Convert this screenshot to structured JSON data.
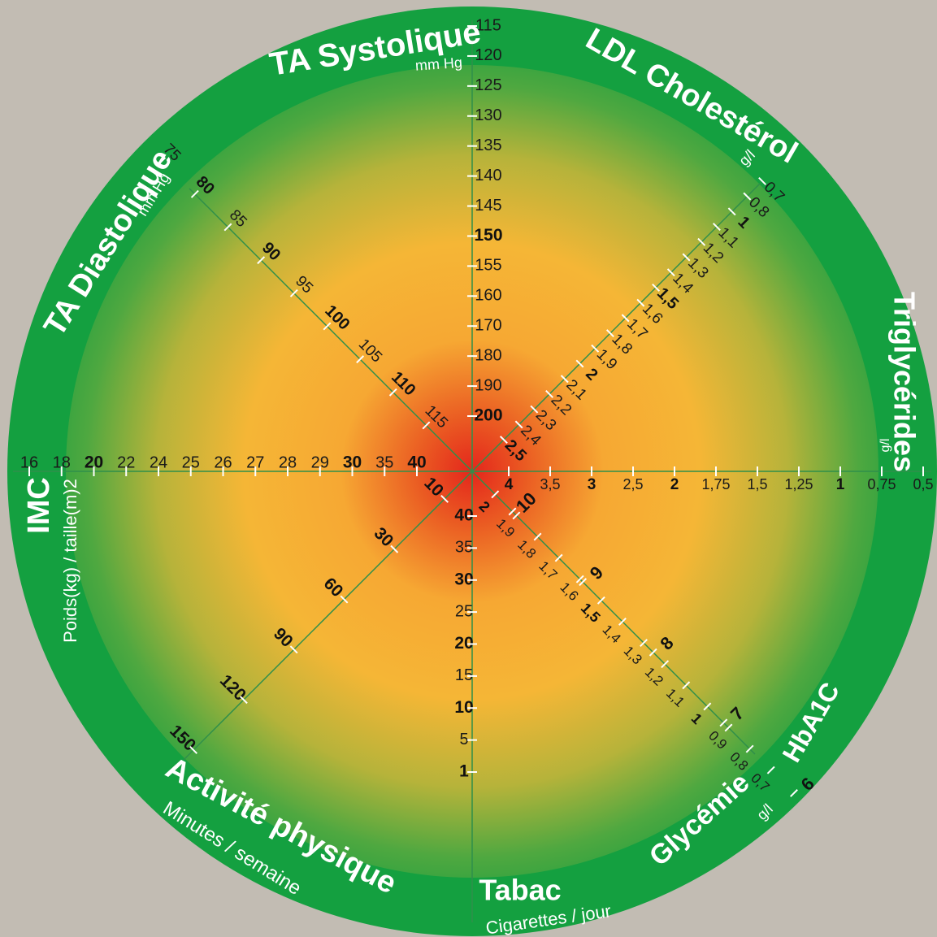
{
  "axes": [
    {
      "id": "ta-systolique",
      "title": "TA Systolique",
      "subtitle": "mm Hg",
      "ticks": [
        {
          "v": "115",
          "b": false
        },
        {
          "v": "120",
          "b": false
        },
        {
          "v": "125",
          "b": false
        },
        {
          "v": "130",
          "b": false
        },
        {
          "v": "135",
          "b": false
        },
        {
          "v": "140",
          "b": false
        },
        {
          "v": "145",
          "b": false
        },
        {
          "v": "150",
          "b": true
        },
        {
          "v": "155",
          "b": false
        },
        {
          "v": "160",
          "b": false
        },
        {
          "v": "170",
          "b": false
        },
        {
          "v": "180",
          "b": false
        },
        {
          "v": "190",
          "b": false
        },
        {
          "v": "200",
          "b": true
        }
      ]
    },
    {
      "id": "ldl-cholesterol",
      "title": "LDL Cholestérol",
      "subtitle": "g/l",
      "ticks": [
        {
          "v": "0,7",
          "b": false
        },
        {
          "v": "0,8",
          "b": false
        },
        {
          "v": "1",
          "b": true
        },
        {
          "v": "1,1",
          "b": false
        },
        {
          "v": "1,2",
          "b": false
        },
        {
          "v": "1,3",
          "b": false
        },
        {
          "v": "1,4",
          "b": false
        },
        {
          "v": "1,5",
          "b": true
        },
        {
          "v": "1,6",
          "b": false
        },
        {
          "v": "1,7",
          "b": false
        },
        {
          "v": "1,8",
          "b": false
        },
        {
          "v": "1,9",
          "b": false
        },
        {
          "v": "2",
          "b": true
        },
        {
          "v": "2,1",
          "b": false
        },
        {
          "v": "2,2",
          "b": false
        },
        {
          "v": "2,3",
          "b": false
        },
        {
          "v": "2,4",
          "b": false
        },
        {
          "v": "2,5",
          "b": true
        }
      ]
    },
    {
      "id": "triglycerides",
      "title": "Triglycérides",
      "subtitle": "g/l",
      "ticks": [
        {
          "v": "0,5",
          "b": false
        },
        {
          "v": "0,75",
          "b": false
        },
        {
          "v": "1",
          "b": true
        },
        {
          "v": "1,25",
          "b": false
        },
        {
          "v": "1,5",
          "b": false
        },
        {
          "v": "1,75",
          "b": false
        },
        {
          "v": "2",
          "b": true
        },
        {
          "v": "2,5",
          "b": false
        },
        {
          "v": "3",
          "b": true
        },
        {
          "v": "3,5",
          "b": false
        },
        {
          "v": "4",
          "b": true
        }
      ]
    },
    {
      "id": "glycemie",
      "title": "Glycémie",
      "subtitle": "g/l",
      "ticks": [
        {
          "v": "0,7",
          "b": false
        },
        {
          "v": "0,8",
          "b": false
        },
        {
          "v": "0,9",
          "b": false
        },
        {
          "v": "1",
          "b": true
        },
        {
          "v": "1,1",
          "b": false
        },
        {
          "v": "1,2",
          "b": false
        },
        {
          "v": "1,3",
          "b": false
        },
        {
          "v": "1,4",
          "b": false
        },
        {
          "v": "1,5",
          "b": true
        },
        {
          "v": "1,6",
          "b": false
        },
        {
          "v": "1,7",
          "b": false
        },
        {
          "v": "1,8",
          "b": false
        },
        {
          "v": "1,9",
          "b": false
        },
        {
          "v": "2",
          "b": true
        }
      ]
    },
    {
      "id": "hba1c",
      "title": "HbA1C",
      "subtitle": "",
      "ticks": [
        {
          "v": "6",
          "b": true
        },
        {
          "v": "7",
          "b": true
        },
        {
          "v": "8",
          "b": true
        },
        {
          "v": "9",
          "b": true
        },
        {
          "v": "10",
          "b": true
        }
      ]
    },
    {
      "id": "tabac",
      "title": "Tabac",
      "subtitle": "Cigarettes / jour",
      "ticks": [
        {
          "v": "1",
          "b": true
        },
        {
          "v": "5",
          "b": false
        },
        {
          "v": "10",
          "b": true
        },
        {
          "v": "15",
          "b": false
        },
        {
          "v": "20",
          "b": true
        },
        {
          "v": "25",
          "b": false
        },
        {
          "v": "30",
          "b": true
        },
        {
          "v": "35",
          "b": false
        },
        {
          "v": "40",
          "b": true
        }
      ]
    },
    {
      "id": "activite-physique",
      "title": "Activité physique",
      "subtitle": "Minutes / semaine",
      "ticks": [
        {
          "v": "150",
          "b": true
        },
        {
          "v": "120",
          "b": true
        },
        {
          "v": "90",
          "b": true
        },
        {
          "v": "60",
          "b": true
        },
        {
          "v": "30",
          "b": true
        },
        {
          "v": "10",
          "b": true
        }
      ]
    },
    {
      "id": "imc",
      "title": "IMC",
      "subtitle": "Poids(kg) / taille(m)2",
      "ticks": [
        {
          "v": "16",
          "b": false
        },
        {
          "v": "18",
          "b": false
        },
        {
          "v": "20",
          "b": true
        },
        {
          "v": "22",
          "b": false
        },
        {
          "v": "24",
          "b": false
        },
        {
          "v": "25",
          "b": false
        },
        {
          "v": "26",
          "b": false
        },
        {
          "v": "27",
          "b": false
        },
        {
          "v": "28",
          "b": false
        },
        {
          "v": "29",
          "b": false
        },
        {
          "v": "30",
          "b": true
        },
        {
          "v": "35",
          "b": false
        },
        {
          "v": "40",
          "b": true
        }
      ]
    },
    {
      "id": "ta-diastolique",
      "title": "TA Diastolique",
      "subtitle": "mm Hg",
      "ticks": [
        {
          "v": "75",
          "b": false
        },
        {
          "v": "80",
          "b": true
        },
        {
          "v": "85",
          "b": false
        },
        {
          "v": "90",
          "b": true
        },
        {
          "v": "95",
          "b": false
        },
        {
          "v": "100",
          "b": true
        },
        {
          "v": "105",
          "b": false
        },
        {
          "v": "110",
          "b": true
        },
        {
          "v": "115",
          "b": false
        }
      ]
    }
  ],
  "colors": {
    "background": "#c2bcb3",
    "ring": "#14a040",
    "center": "#e02a1e",
    "mid": "#f5b335",
    "outer": "#24a140",
    "line": "#2f8f4a"
  }
}
